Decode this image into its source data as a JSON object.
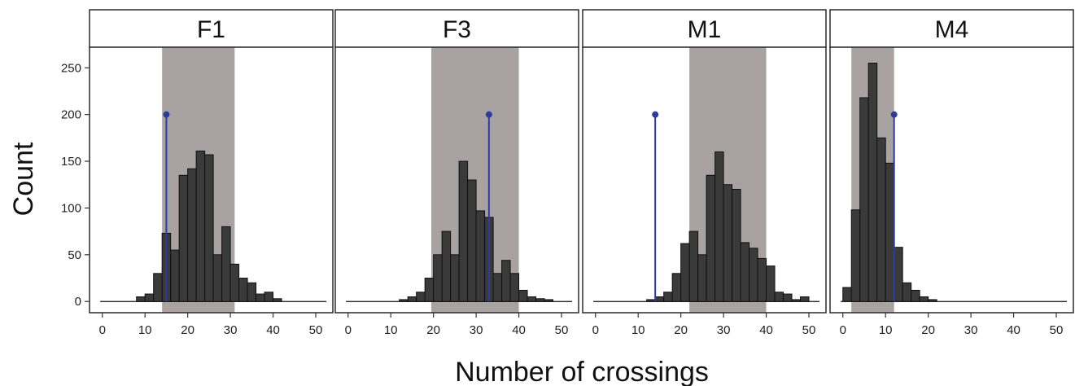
{
  "chart_data": {
    "type": "bar",
    "xlabel": "Number of crossings",
    "ylabel": "Count",
    "xlim": [
      -3,
      54
    ],
    "ylim": [
      -12,
      272
    ],
    "xticks": [
      "0",
      "10",
      "20",
      "30",
      "40",
      "50"
    ],
    "yticks": [
      "0",
      "50",
      "100",
      "150",
      "200",
      "250"
    ],
    "bin_width": 2,
    "colors": {
      "bar_fill": "#3a3a3a",
      "bar_stroke": "#111111",
      "band": "#a8a2a2",
      "marker": "#2e3b9c",
      "frame": "#2b2b2b"
    },
    "panels": [
      {
        "label": "F1",
        "band": [
          14,
          31
        ],
        "marker_x": 15,
        "marker_y": 200,
        "bins": [
          {
            "x": 9,
            "count": 5
          },
          {
            "x": 11,
            "count": 8
          },
          {
            "x": 13,
            "count": 30
          },
          {
            "x": 15,
            "count": 73
          },
          {
            "x": 17,
            "count": 55
          },
          {
            "x": 19,
            "count": 135
          },
          {
            "x": 21,
            "count": 142
          },
          {
            "x": 23,
            "count": 161
          },
          {
            "x": 25,
            "count": 157
          },
          {
            "x": 27,
            "count": 50
          },
          {
            "x": 29,
            "count": 80
          },
          {
            "x": 31,
            "count": 40
          },
          {
            "x": 33,
            "count": 25
          },
          {
            "x": 35,
            "count": 20
          },
          {
            "x": 37,
            "count": 8
          },
          {
            "x": 39,
            "count": 10
          },
          {
            "x": 41,
            "count": 3
          }
        ]
      },
      {
        "label": "F3",
        "band": [
          19.5,
          40
        ],
        "marker_x": 33,
        "marker_y": 200,
        "bins": [
          {
            "x": 13,
            "count": 2
          },
          {
            "x": 15,
            "count": 5
          },
          {
            "x": 17,
            "count": 10
          },
          {
            "x": 19,
            "count": 25
          },
          {
            "x": 21,
            "count": 50
          },
          {
            "x": 23,
            "count": 75
          },
          {
            "x": 25,
            "count": 50
          },
          {
            "x": 27,
            "count": 150
          },
          {
            "x": 29,
            "count": 130
          },
          {
            "x": 31,
            "count": 97
          },
          {
            "x": 33,
            "count": 90
          },
          {
            "x": 35,
            "count": 30
          },
          {
            "x": 37,
            "count": 44
          },
          {
            "x": 39,
            "count": 30
          },
          {
            "x": 41,
            "count": 12
          },
          {
            "x": 43,
            "count": 5
          },
          {
            "x": 45,
            "count": 3
          },
          {
            "x": 47,
            "count": 2
          }
        ]
      },
      {
        "label": "M1",
        "band": [
          22,
          40
        ],
        "marker_x": 14,
        "marker_y": 200,
        "bins": [
          {
            "x": 13,
            "count": 2
          },
          {
            "x": 15,
            "count": 5
          },
          {
            "x": 17,
            "count": 10
          },
          {
            "x": 19,
            "count": 30
          },
          {
            "x": 21,
            "count": 62
          },
          {
            "x": 23,
            "count": 75
          },
          {
            "x": 25,
            "count": 50
          },
          {
            "x": 27,
            "count": 135
          },
          {
            "x": 29,
            "count": 160
          },
          {
            "x": 31,
            "count": 125
          },
          {
            "x": 33,
            "count": 120
          },
          {
            "x": 35,
            "count": 63
          },
          {
            "x": 37,
            "count": 57
          },
          {
            "x": 39,
            "count": 46
          },
          {
            "x": 41,
            "count": 38
          },
          {
            "x": 43,
            "count": 10
          },
          {
            "x": 45,
            "count": 8
          },
          {
            "x": 47,
            "count": 2
          },
          {
            "x": 49,
            "count": 5
          }
        ]
      },
      {
        "label": "M4",
        "band": [
          2,
          12
        ],
        "marker_x": 12,
        "marker_y": 200,
        "bins": [
          {
            "x": 1,
            "count": 15
          },
          {
            "x": 3,
            "count": 98
          },
          {
            "x": 5,
            "count": 218
          },
          {
            "x": 7,
            "count": 255
          },
          {
            "x": 9,
            "count": 175
          },
          {
            "x": 11,
            "count": 148
          },
          {
            "x": 13,
            "count": 58
          },
          {
            "x": 15,
            "count": 20
          },
          {
            "x": 17,
            "count": 12
          },
          {
            "x": 19,
            "count": 5
          },
          {
            "x": 21,
            "count": 2
          }
        ]
      }
    ]
  }
}
